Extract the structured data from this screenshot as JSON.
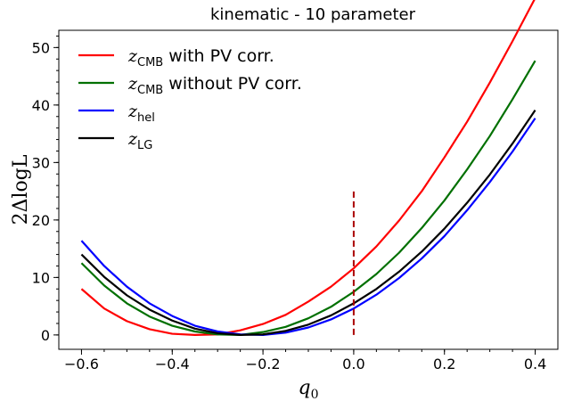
{
  "chart_data": {
    "type": "line",
    "title": "kinematic - 10 parameter",
    "xlabel": {
      "main": "q",
      "sub": "0"
    },
    "ylabel": "2ΔlogL",
    "xlim": [
      -0.65,
      0.45
    ],
    "ylim": [
      -2.5,
      53
    ],
    "xticks": [
      -0.6,
      -0.4,
      -0.2,
      0.0,
      0.2,
      0.4
    ],
    "xtick_labels": [
      "−0.6",
      "−0.4",
      "−0.2",
      "0.0",
      "0.2",
      "0.4"
    ],
    "yticks": [
      0,
      10,
      20,
      30,
      40,
      50
    ],
    "ytick_labels": [
      "0",
      "10",
      "20",
      "30",
      "40",
      "50"
    ],
    "grid": false,
    "legend_position": "top-left",
    "x": [
      -0.6,
      -0.55,
      -0.5,
      -0.45,
      -0.4,
      -0.35,
      -0.3,
      -0.25,
      -0.2,
      -0.15,
      -0.1,
      -0.05,
      0.0,
      0.05,
      0.1,
      0.15,
      0.2,
      0.25,
      0.3,
      0.35,
      0.4
    ],
    "series": [
      {
        "name_main": "z",
        "name_sub": "CMB",
        "name_rest": " with PV corr.",
        "color": "#ff0000",
        "values": [
          8.0,
          4.6,
          2.4,
          1.0,
          0.2,
          0.0,
          0.1,
          0.8,
          1.9,
          3.5,
          5.8,
          8.4,
          11.6,
          15.4,
          19.9,
          25.0,
          30.9,
          37.1,
          43.9,
          51.1,
          58.6
        ]
      },
      {
        "name_main": "z",
        "name_sub": "CMB",
        "name_rest": " without PV corr.",
        "color": "#007000",
        "values": [
          12.5,
          8.6,
          5.5,
          3.2,
          1.6,
          0.6,
          0.1,
          0.0,
          0.5,
          1.4,
          2.9,
          4.9,
          7.5,
          10.6,
          14.3,
          18.6,
          23.4,
          28.8,
          34.6,
          41.0,
          47.7
        ]
      },
      {
        "name_main": "z",
        "name_sub": "hel",
        "name_rest": "",
        "color": "#0000ff",
        "values": [
          16.4,
          12.0,
          8.4,
          5.5,
          3.3,
          1.6,
          0.6,
          0.1,
          0.0,
          0.4,
          1.3,
          2.7,
          4.6,
          7.0,
          9.9,
          13.3,
          17.2,
          21.7,
          26.6,
          31.9,
          37.7
        ]
      },
      {
        "name_main": "z",
        "name_sub": "LG",
        "name_rest": "",
        "color": "#000000",
        "values": [
          14.0,
          10.1,
          6.9,
          4.4,
          2.5,
          1.1,
          0.3,
          0.0,
          0.1,
          0.7,
          1.8,
          3.4,
          5.5,
          8.0,
          11.0,
          14.5,
          18.5,
          23.0,
          27.9,
          33.3,
          39.1
        ]
      }
    ],
    "annotation": {
      "type": "vline",
      "x": 0.0,
      "y_range": [
        0,
        25
      ],
      "color": "#aa0000",
      "style": "dashed"
    }
  }
}
